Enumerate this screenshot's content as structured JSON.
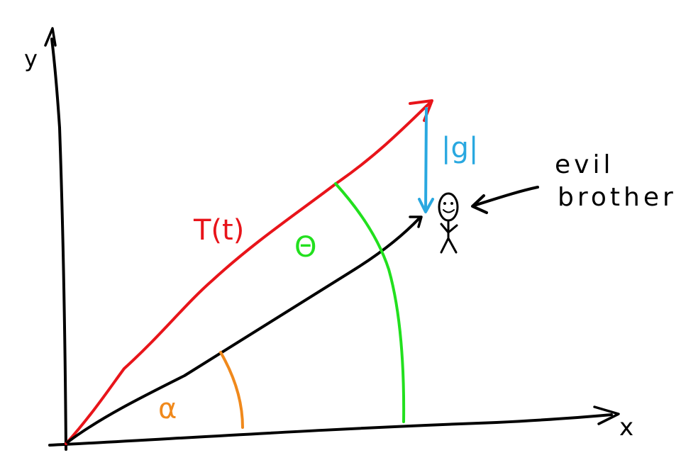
{
  "axes": {
    "x_label": "x",
    "y_label": "y"
  },
  "labels": {
    "thrust": "T(t)",
    "gravity": "|g|",
    "theta": "Θ",
    "alpha": "α",
    "target_line1": "evil",
    "target_line2": "brother"
  },
  "colors": {
    "axes": "#000000",
    "thrust": "#e8141a",
    "aim_line": "#000000",
    "gravity": "#29a8e0",
    "theta_arc": "#22e01e",
    "alpha_arc": "#f0891c",
    "figure": "#000000"
  }
}
